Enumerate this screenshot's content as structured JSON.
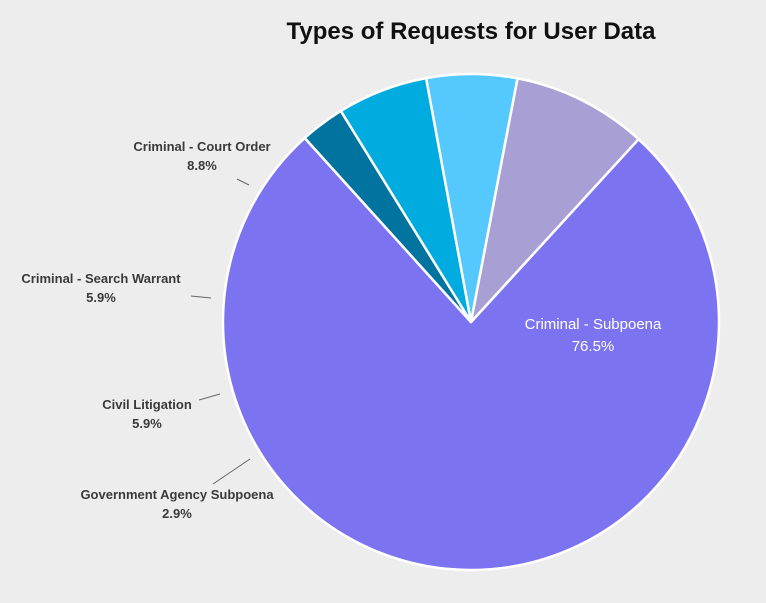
{
  "chart_data": {
    "type": "pie",
    "title": "Types of Requests for User Data",
    "slices": [
      {
        "name": "Criminal - Subpoena",
        "value": 76.5,
        "label": "76.5%",
        "color": "#7b73f0"
      },
      {
        "name": "Government Agency Subpoena",
        "value": 2.9,
        "label": "2.9%",
        "color": "#00739e"
      },
      {
        "name": "Civil Litigation",
        "value": 5.9,
        "label": "5.9%",
        "color": "#00abe0"
      },
      {
        "name": "Criminal - Search Warrant",
        "value": 5.9,
        "label": "5.9%",
        "color": "#55c8fd"
      },
      {
        "name": "Criminal - Court Order",
        "value": 8.8,
        "label": "8.8%",
        "color": "#a89fd4"
      }
    ]
  }
}
